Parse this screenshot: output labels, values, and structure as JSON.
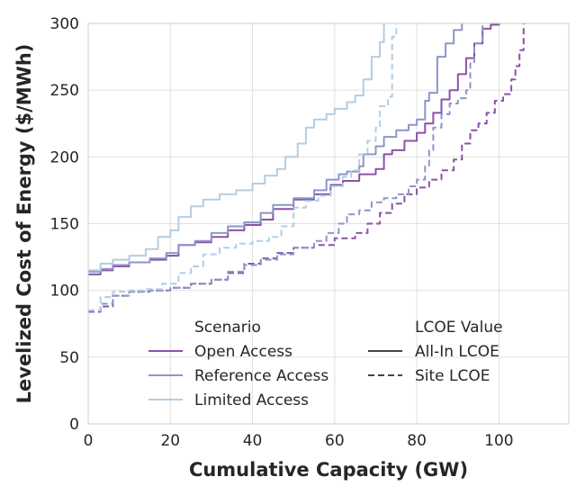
{
  "chart_data": {
    "type": "line",
    "title": "",
    "xlabel": "Cumulative Capacity (GW)",
    "ylabel": "Levelized Cost of Energy ($/MWh)",
    "xlim": [
      0,
      117
    ],
    "ylim": [
      0,
      300
    ],
    "xticks": [
      0,
      20,
      40,
      60,
      80,
      100
    ],
    "yticks": [
      0,
      50,
      100,
      150,
      200,
      250,
      300
    ],
    "grid": true,
    "legend": {
      "placement": "lower-right",
      "hue_title": "Scenario",
      "style_title": "LCOE Value",
      "hue_entries": [
        {
          "name": "Open Access",
          "color": "#8a52a8"
        },
        {
          "name": "Reference Access",
          "color": "#8c96c6"
        },
        {
          "name": "Limited Access",
          "color": "#b3cde3"
        }
      ],
      "style_entries": [
        {
          "name": "All-In LCOE",
          "dash": "solid"
        },
        {
          "name": "Site LCOE",
          "dash": "dashed"
        }
      ]
    },
    "series": [
      {
        "scenario": "Open Access",
        "lcoe": "All-In LCOE",
        "color": "#8a52a8",
        "dash": "solid",
        "points": [
          [
            0,
            112
          ],
          [
            3,
            115
          ],
          [
            6,
            118
          ],
          [
            10,
            121
          ],
          [
            15,
            123
          ],
          [
            19,
            126
          ],
          [
            22,
            134
          ],
          [
            26,
            136
          ],
          [
            30,
            140
          ],
          [
            34,
            145
          ],
          [
            38,
            149
          ],
          [
            42,
            153
          ],
          [
            45,
            161
          ],
          [
            50,
            168
          ],
          [
            55,
            172
          ],
          [
            59,
            179
          ],
          [
            62,
            182
          ],
          [
            66,
            187
          ],
          [
            70,
            191
          ],
          [
            72,
            202
          ],
          [
            74,
            205
          ],
          [
            77,
            212
          ],
          [
            80,
            218
          ],
          [
            82,
            225
          ],
          [
            84,
            233
          ],
          [
            86,
            243
          ],
          [
            88,
            250
          ],
          [
            90,
            262
          ],
          [
            92,
            274
          ],
          [
            94,
            285
          ],
          [
            96,
            296
          ],
          [
            98,
            299
          ],
          [
            100,
            300
          ]
        ]
      },
      {
        "scenario": "Reference Access",
        "lcoe": "All-In LCOE",
        "color": "#8c96c6",
        "dash": "solid",
        "points": [
          [
            0,
            114
          ],
          [
            3,
            116
          ],
          [
            6,
            119
          ],
          [
            10,
            121
          ],
          [
            15,
            124
          ],
          [
            19,
            128
          ],
          [
            22,
            134
          ],
          [
            26,
            137
          ],
          [
            30,
            143
          ],
          [
            34,
            148
          ],
          [
            38,
            151
          ],
          [
            42,
            158
          ],
          [
            45,
            164
          ],
          [
            50,
            169
          ],
          [
            55,
            175
          ],
          [
            58,
            183
          ],
          [
            61,
            187
          ],
          [
            63,
            189
          ],
          [
            66,
            193
          ],
          [
            67,
            202
          ],
          [
            70,
            208
          ],
          [
            72,
            215
          ],
          [
            75,
            220
          ],
          [
            78,
            224
          ],
          [
            80,
            228
          ],
          [
            82,
            242
          ],
          [
            83,
            248
          ],
          [
            85,
            275
          ],
          [
            87,
            285
          ],
          [
            89,
            295
          ],
          [
            91,
            300
          ]
        ]
      },
      {
        "scenario": "Limited Access",
        "lcoe": "All-In LCOE",
        "color": "#b3cde3",
        "dash": "solid",
        "points": [
          [
            0,
            115
          ],
          [
            3,
            120
          ],
          [
            6,
            123
          ],
          [
            10,
            126
          ],
          [
            14,
            131
          ],
          [
            17,
            140
          ],
          [
            20,
            145
          ],
          [
            22,
            155
          ],
          [
            25,
            163
          ],
          [
            28,
            168
          ],
          [
            32,
            172
          ],
          [
            36,
            175
          ],
          [
            40,
            180
          ],
          [
            43,
            186
          ],
          [
            46,
            191
          ],
          [
            48,
            200
          ],
          [
            51,
            210
          ],
          [
            53,
            222
          ],
          [
            55,
            228
          ],
          [
            58,
            232
          ],
          [
            60,
            236
          ],
          [
            63,
            241
          ],
          [
            65,
            246
          ],
          [
            67,
            258
          ],
          [
            69,
            275
          ],
          [
            71,
            286
          ],
          [
            72,
            300
          ]
        ]
      },
      {
        "scenario": "Open Access",
        "lcoe": "Site LCOE",
        "color": "#8a52a8",
        "dash": "dashed",
        "points": [
          [
            0,
            84
          ],
          [
            3,
            88
          ],
          [
            6,
            96
          ],
          [
            10,
            99
          ],
          [
            15,
            100
          ],
          [
            20,
            102
          ],
          [
            25,
            105
          ],
          [
            30,
            108
          ],
          [
            34,
            113
          ],
          [
            38,
            120
          ],
          [
            42,
            124
          ],
          [
            46,
            128
          ],
          [
            50,
            132
          ],
          [
            55,
            134
          ],
          [
            60,
            139
          ],
          [
            65,
            143
          ],
          [
            68,
            150
          ],
          [
            71,
            158
          ],
          [
            74,
            165
          ],
          [
            77,
            172
          ],
          [
            80,
            177
          ],
          [
            83,
            183
          ],
          [
            86,
            190
          ],
          [
            89,
            198
          ],
          [
            91,
            210
          ],
          [
            93,
            220
          ],
          [
            95,
            225
          ],
          [
            97,
            233
          ],
          [
            99,
            242
          ],
          [
            101,
            247
          ],
          [
            103,
            258
          ],
          [
            104,
            268
          ],
          [
            105,
            280
          ],
          [
            106,
            300
          ]
        ]
      },
      {
        "scenario": "Reference Access",
        "lcoe": "Site LCOE",
        "color": "#8c96c6",
        "dash": "dashed",
        "points": [
          [
            0,
            85
          ],
          [
            3,
            90
          ],
          [
            6,
            96
          ],
          [
            10,
            99
          ],
          [
            15,
            100
          ],
          [
            20,
            102
          ],
          [
            25,
            105
          ],
          [
            30,
            108
          ],
          [
            34,
            114
          ],
          [
            38,
            119
          ],
          [
            42,
            123
          ],
          [
            46,
            127
          ],
          [
            50,
            132
          ],
          [
            55,
            137
          ],
          [
            58,
            143
          ],
          [
            61,
            150
          ],
          [
            63,
            157
          ],
          [
            66,
            160
          ],
          [
            69,
            166
          ],
          [
            72,
            169
          ],
          [
            75,
            172
          ],
          [
            78,
            178
          ],
          [
            80,
            183
          ],
          [
            82,
            193
          ],
          [
            83,
            205
          ],
          [
            84,
            222
          ],
          [
            86,
            232
          ],
          [
            88,
            240
          ],
          [
            90,
            244
          ],
          [
            92,
            250
          ],
          [
            93,
            270
          ],
          [
            94,
            285
          ],
          [
            96,
            300
          ]
        ]
      },
      {
        "scenario": "Limited Access",
        "lcoe": "Site LCOE",
        "color": "#b3cde3",
        "dash": "dashed",
        "points": [
          [
            0,
            85
          ],
          [
            3,
            95
          ],
          [
            6,
            99
          ],
          [
            10,
            100
          ],
          [
            14,
            101
          ],
          [
            18,
            105
          ],
          [
            22,
            113
          ],
          [
            25,
            118
          ],
          [
            28,
            127
          ],
          [
            32,
            132
          ],
          [
            36,
            135
          ],
          [
            40,
            137
          ],
          [
            44,
            140
          ],
          [
            47,
            148
          ],
          [
            50,
            162
          ],
          [
            53,
            167
          ],
          [
            56,
            171
          ],
          [
            59,
            178
          ],
          [
            62,
            185
          ],
          [
            64,
            190
          ],
          [
            66,
            202
          ],
          [
            68,
            212
          ],
          [
            70,
            222
          ],
          [
            71,
            238
          ],
          [
            73,
            245
          ],
          [
            74,
            290
          ],
          [
            75,
            300
          ]
        ]
      }
    ]
  }
}
